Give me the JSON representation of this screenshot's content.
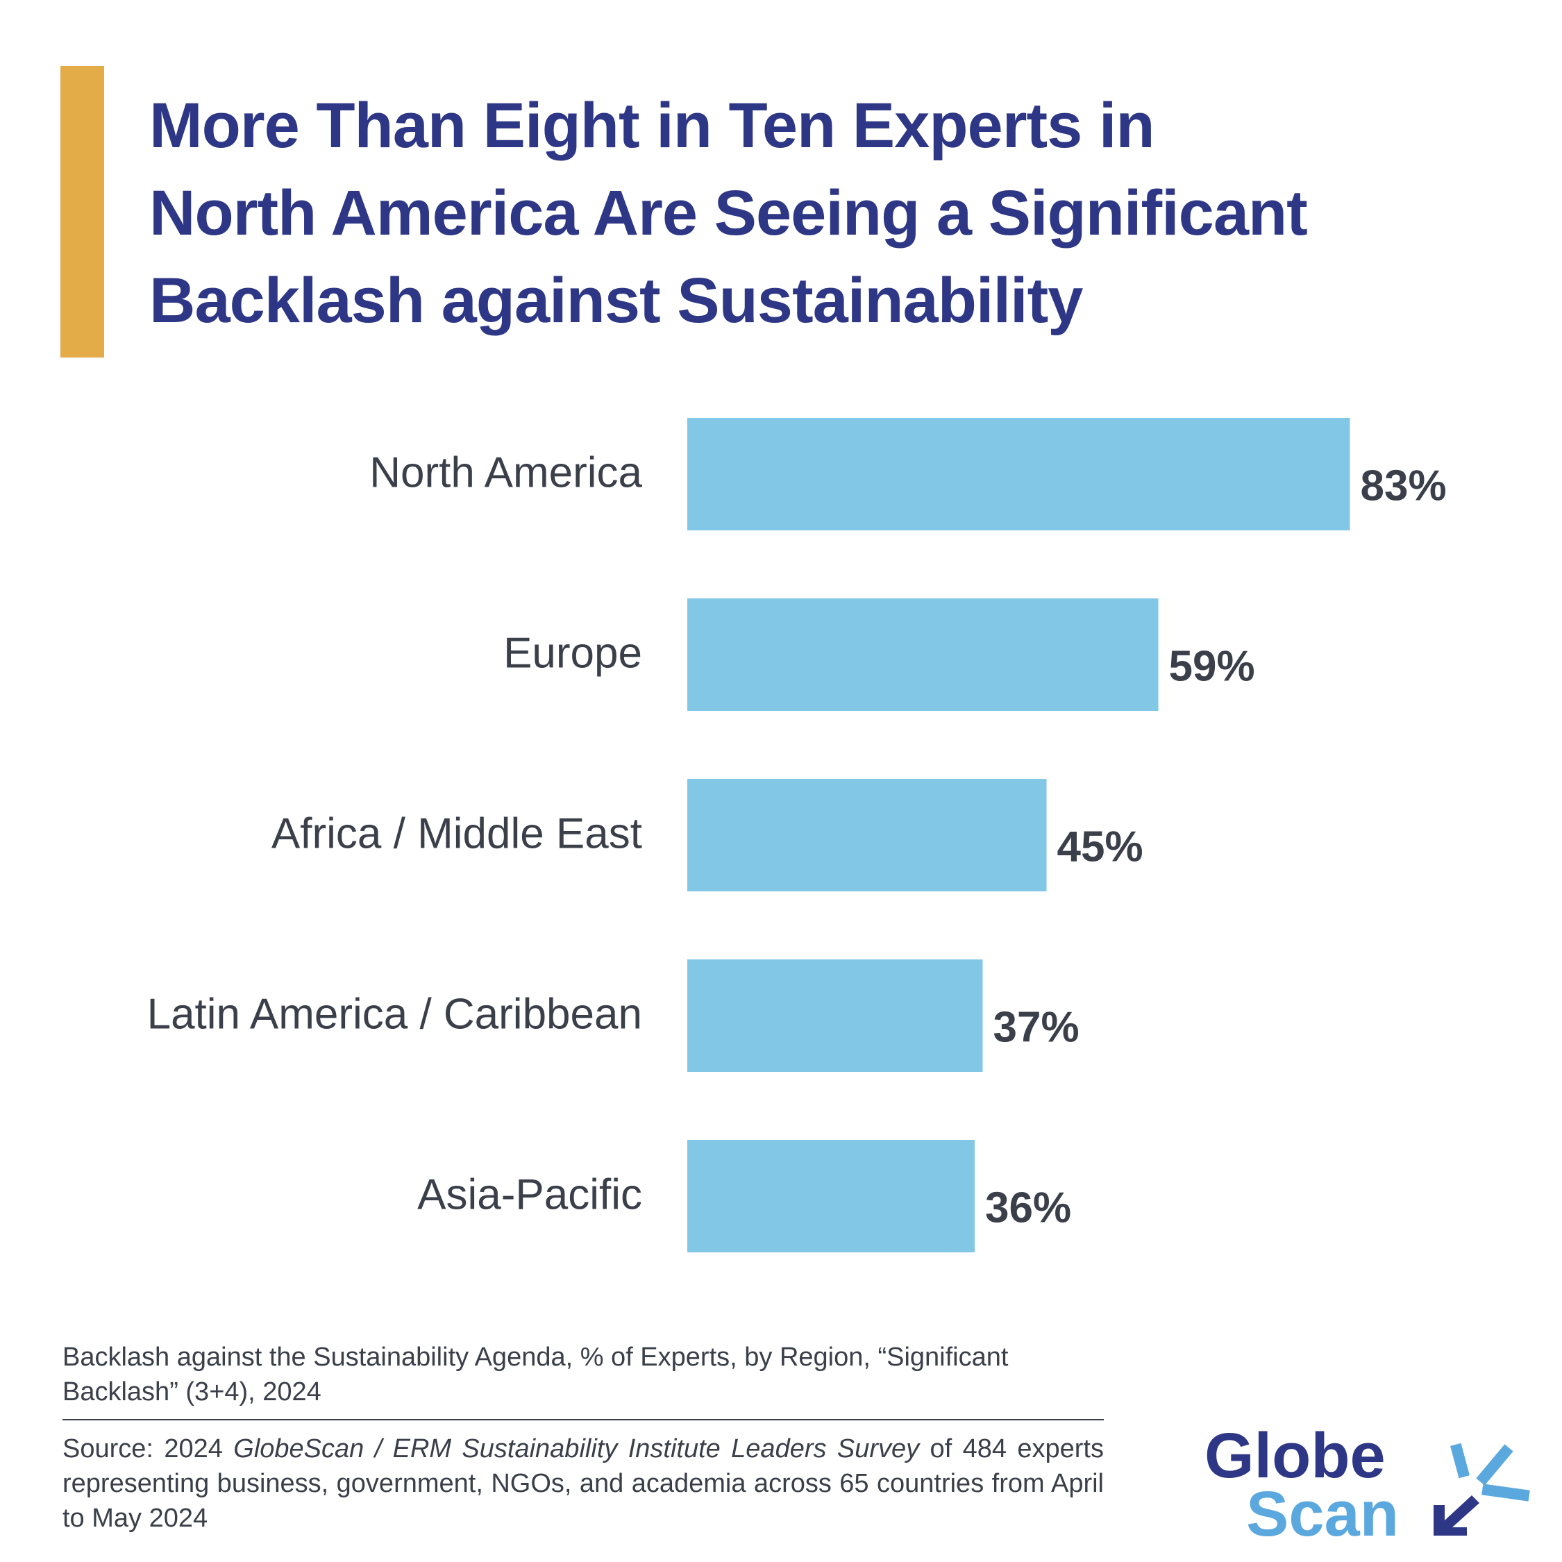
{
  "title_lines": [
    "More Than Eight in Ten Experts in",
    "North America Are Seeing a Significant",
    "Backlash against Sustainability"
  ],
  "caption": "Backlash against the Sustainability Agenda, % of Experts, by Region, “Significant Backlash” (3+4), 2024",
  "source": {
    "prefix": "Source: 2024 ",
    "survey": "GlobeScan / ERM Sustainability Institute Leaders Survey",
    "suffix": " of 484 experts representing business, government, NGOs, and academia across 65 countries from April to May 2024"
  },
  "logo": {
    "line1": "Globe",
    "line2": "Scan"
  },
  "colors": {
    "title": "#2E3785",
    "accent": "#E3AC49",
    "bar": "#82C8E6",
    "label": "#3b3f4a",
    "logo_dark": "#2E3785",
    "logo_light": "#5BA8DF"
  },
  "chart_data": {
    "type": "bar",
    "orientation": "horizontal",
    "categories": [
      "North America",
      "Europe",
      "Africa / Middle East",
      "Latin America / Caribbean",
      "Asia-Pacific"
    ],
    "values": [
      83,
      59,
      45,
      37,
      36
    ],
    "value_labels": [
      "83%",
      "59%",
      "45%",
      "37%",
      "36%"
    ],
    "xlim": [
      0,
      100
    ],
    "unit": "%",
    "grid": false,
    "legend": "none"
  }
}
